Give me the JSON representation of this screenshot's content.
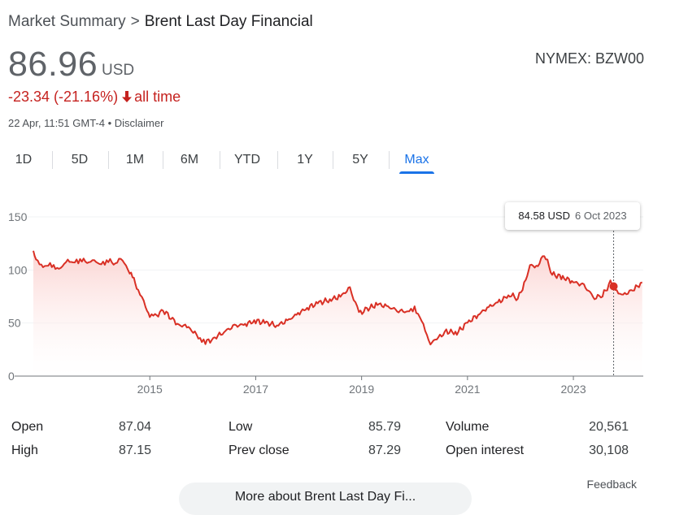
{
  "breadcrumb": {
    "root": "Market Summary",
    "separator": ">",
    "current": "Brent Last Day Financial"
  },
  "quote": {
    "price": "86.96",
    "currency": "USD",
    "change": "-23.34 (-21.16%)",
    "change_period": "all time",
    "timestamp": "22 Apr, 11:51 GMT-4 • Disclaimer",
    "exchange": "NYMEX: BZW00"
  },
  "tabs": [
    {
      "label": "1D"
    },
    {
      "label": "5D"
    },
    {
      "label": "1M"
    },
    {
      "label": "6M"
    },
    {
      "label": "YTD"
    },
    {
      "label": "1Y"
    },
    {
      "label": "5Y"
    },
    {
      "label": "Max",
      "active": true
    }
  ],
  "tooltip": {
    "value": "84.58 USD",
    "date": "6 Oct 2023"
  },
  "stats": [
    {
      "label": "Open",
      "value": "87.04"
    },
    {
      "label": "High",
      "value": "87.15"
    },
    {
      "label": "Low",
      "value": "85.79"
    },
    {
      "label": "Prev close",
      "value": "87.29"
    },
    {
      "label": "Volume",
      "value": "20,561"
    },
    {
      "label": "Open interest",
      "value": "30,108"
    }
  ],
  "feedback_label": "Feedback",
  "more_button_label": "More about Brent Last Day Fi...",
  "colors": {
    "line": "#d93025",
    "up_down_text": "#c5221f",
    "accent": "#1a73e8"
  },
  "icons": {
    "change_arrow": "arrow-down-icon"
  },
  "chart_data": {
    "type": "area",
    "xlabel": "",
    "ylabel": "",
    "ylim": [
      0,
      150
    ],
    "xlim": [
      2012.8,
      2024.32
    ],
    "y_ticks": [
      0,
      50,
      100,
      150
    ],
    "x_ticks": [
      2015,
      2017,
      2019,
      2021,
      2023
    ],
    "grid": true,
    "series": [
      {
        "values_x": [
          2012.8,
          2012.85,
          2012.95,
          2013.05,
          2013.15,
          2013.25,
          2013.35,
          2013.45,
          2013.55,
          2013.65,
          2013.75,
          2013.85,
          2013.95,
          2014.05,
          2014.15,
          2014.25,
          2014.35,
          2014.45,
          2014.55,
          2014.62,
          2014.7,
          2014.78,
          2014.85,
          2014.92,
          2015.0,
          2015.1,
          2015.25,
          2015.4,
          2015.55,
          2015.7,
          2015.85,
          2015.95,
          2016.05,
          2016.2,
          2016.4,
          2016.6,
          2016.8,
          2017.0,
          2017.2,
          2017.4,
          2017.6,
          2017.8,
          2018.0,
          2018.2,
          2018.4,
          2018.6,
          2018.78,
          2018.85,
          2018.95,
          2019.1,
          2019.3,
          2019.5,
          2019.7,
          2019.9,
          2020.0,
          2020.1,
          2020.2,
          2020.3,
          2020.45,
          2020.6,
          2020.8,
          2021.0,
          2021.2,
          2021.4,
          2021.6,
          2021.8,
          2021.95,
          2022.1,
          2022.18,
          2022.3,
          2022.45,
          2022.6,
          2022.8,
          2023.0,
          2023.2,
          2023.4,
          2023.55,
          2023.7,
          2023.76,
          2023.85,
          2024.0,
          2024.15,
          2024.3
        ],
        "values": [
          118,
          110,
          103,
          106,
          103,
          101,
          104,
          108,
          109,
          107,
          109,
          108,
          108,
          107,
          106,
          108,
          107,
          110,
          105,
          98,
          90,
          82,
          75,
          65,
          57,
          56,
          62,
          55,
          48,
          47,
          40,
          36,
          32,
          35,
          42,
          47,
          49,
          52,
          50,
          48,
          52,
          59,
          65,
          69,
          72,
          75,
          83,
          74,
          59,
          63,
          68,
          65,
          62,
          60,
          64,
          57,
          42,
          31,
          36,
          42,
          41,
          50,
          58,
          65,
          70,
          77,
          73,
          90,
          105,
          102,
          115,
          96,
          93,
          89,
          85,
          74,
          76,
          88,
          84.58,
          77,
          78,
          82,
          88.4
        ]
      }
    ]
  }
}
